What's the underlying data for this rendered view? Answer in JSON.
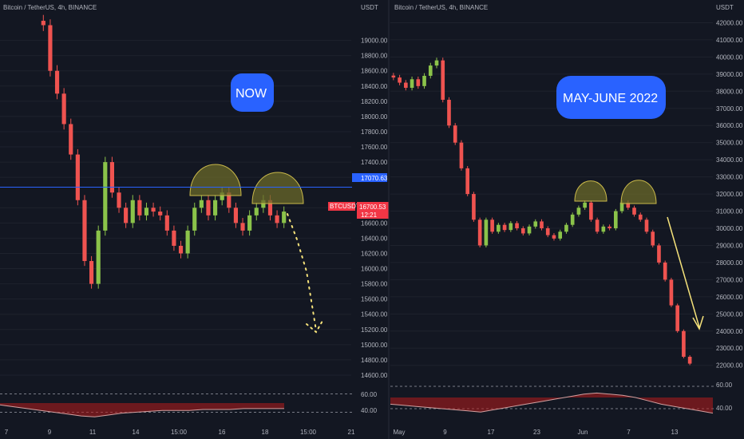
{
  "colors": {
    "background": "#131722",
    "grid": "#1e222d",
    "text": "#b2b5be",
    "up": "#26a69a",
    "up_soft": "#8bc34a",
    "down": "#ef5350",
    "blue_line": "#2962ff",
    "price_tag_red": "#f23645",
    "callout_blue": "#2962ff",
    "pattern_fill": "#6b6a2a",
    "arrow_yellow": "#f5e27a",
    "rsi_green": "#4caf50",
    "rsi_red": "#b71c1c"
  },
  "left_pane": {
    "title": "Bitcoin / TetherUS, 4h, BINANCE",
    "currency": "USDT",
    "price_ticks": [
      "19000.00",
      "18800.00",
      "18600.00",
      "18400.00",
      "18200.00",
      "18000.00",
      "17800.00",
      "17600.00",
      "17400.00",
      "17200.00",
      "16800.00",
      "16600.00",
      "16400.00",
      "16200.00",
      "16000.00",
      "15800.00",
      "15600.00",
      "15400.00",
      "15200.00",
      "15000.00",
      "14800.00",
      "14600.00"
    ],
    "horizontal_line_label": "17070.63",
    "symbol_tag": "BTCUSDT",
    "last_price_label": "16700.53",
    "countdown_label": "12:21",
    "callout": "NOW",
    "rsi_ticks": [
      "60.00",
      "40.00"
    ],
    "time_ticks": [
      "7",
      "9",
      "11",
      "14",
      "15:00",
      "16",
      "18",
      "15:00",
      "21"
    ]
  },
  "right_pane": {
    "title": "Bitcoin / TetherUS, 4h, BINANCE",
    "currency": "USDT",
    "price_ticks": [
      "42000.00",
      "41000.00",
      "40000.00",
      "39000.00",
      "38000.00",
      "37000.00",
      "36000.00",
      "35000.00",
      "34000.00",
      "33000.00",
      "32000.00",
      "31000.00",
      "30000.00",
      "29000.00",
      "28000.00",
      "27000.00",
      "26000.00",
      "25000.00",
      "24000.00",
      "23000.00",
      "22000.00"
    ],
    "callout": "MAY-JUNE 2022",
    "rsi_ticks": [
      "60.00",
      "40.00"
    ],
    "time_ticks": [
      "May",
      "9",
      "17",
      "23",
      "Jun",
      "7",
      "13"
    ]
  },
  "chart_data": [
    {
      "type": "candlestick",
      "title": "Bitcoin / TetherUS, 4h, BINANCE",
      "ylabel": "USDT",
      "ylim": [
        14600,
        19300
      ],
      "key_levels": [
        17070.63
      ],
      "last_price": 16700.53,
      "projected_path": [
        16750,
        15150
      ],
      "series": [
        {
          "name": "BTCUSDT",
          "closes": [
            19200,
            18600,
            18300,
            17900,
            17500,
            16900,
            16100,
            15800,
            16500,
            17400,
            17000,
            16800,
            16600,
            16900,
            16700,
            16800,
            16750,
            16700,
            16500,
            16300,
            16200,
            16500,
            16800,
            16900,
            16700,
            16900,
            17000,
            16800,
            16600,
            16500,
            16700,
            16800,
            16900,
            16700,
            16600,
            16750
          ]
        }
      ],
      "rsi": {
        "ylim": [
          30,
          70
        ],
        "bands": [
          60,
          40
        ],
        "values": [
          48,
          46,
          44,
          42,
          40,
          38,
          36,
          35,
          37,
          39,
          40,
          41,
          42,
          42,
          42,
          43,
          43,
          43,
          44,
          44,
          44,
          44
        ]
      }
    },
    {
      "type": "candlestick",
      "title": "Bitcoin / TetherUS, 4h, BINANCE",
      "ylabel": "USDT",
      "ylim": [
        21800,
        42300
      ],
      "projected_path": [
        30000,
        24000
      ],
      "series": [
        {
          "name": "BTCUSDT",
          "closes": [
            38800,
            38500,
            38200,
            38700,
            38300,
            38900,
            39500,
            39800,
            37500,
            36000,
            35000,
            33500,
            32000,
            30500,
            29000,
            30500,
            29800,
            30200,
            29900,
            30300,
            30000,
            29700,
            30100,
            30400,
            30000,
            29600,
            29400,
            29800,
            30200,
            30800,
            31200,
            31500,
            30500,
            29800,
            30100,
            30000,
            31000,
            31500,
            31200,
            30800,
            30500,
            29800,
            29000,
            28000,
            27000,
            25500,
            24000,
            22500,
            22100
          ]
        }
      ],
      "rsi": {
        "ylim": [
          30,
          70
        ],
        "bands": [
          60,
          40
        ],
        "values": [
          44,
          43,
          42,
          41,
          40,
          39,
          38,
          37,
          39,
          41,
          43,
          45,
          47,
          49,
          51,
          53,
          54,
          53,
          52,
          50,
          47,
          44,
          42,
          40,
          38,
          36
        ]
      }
    }
  ]
}
